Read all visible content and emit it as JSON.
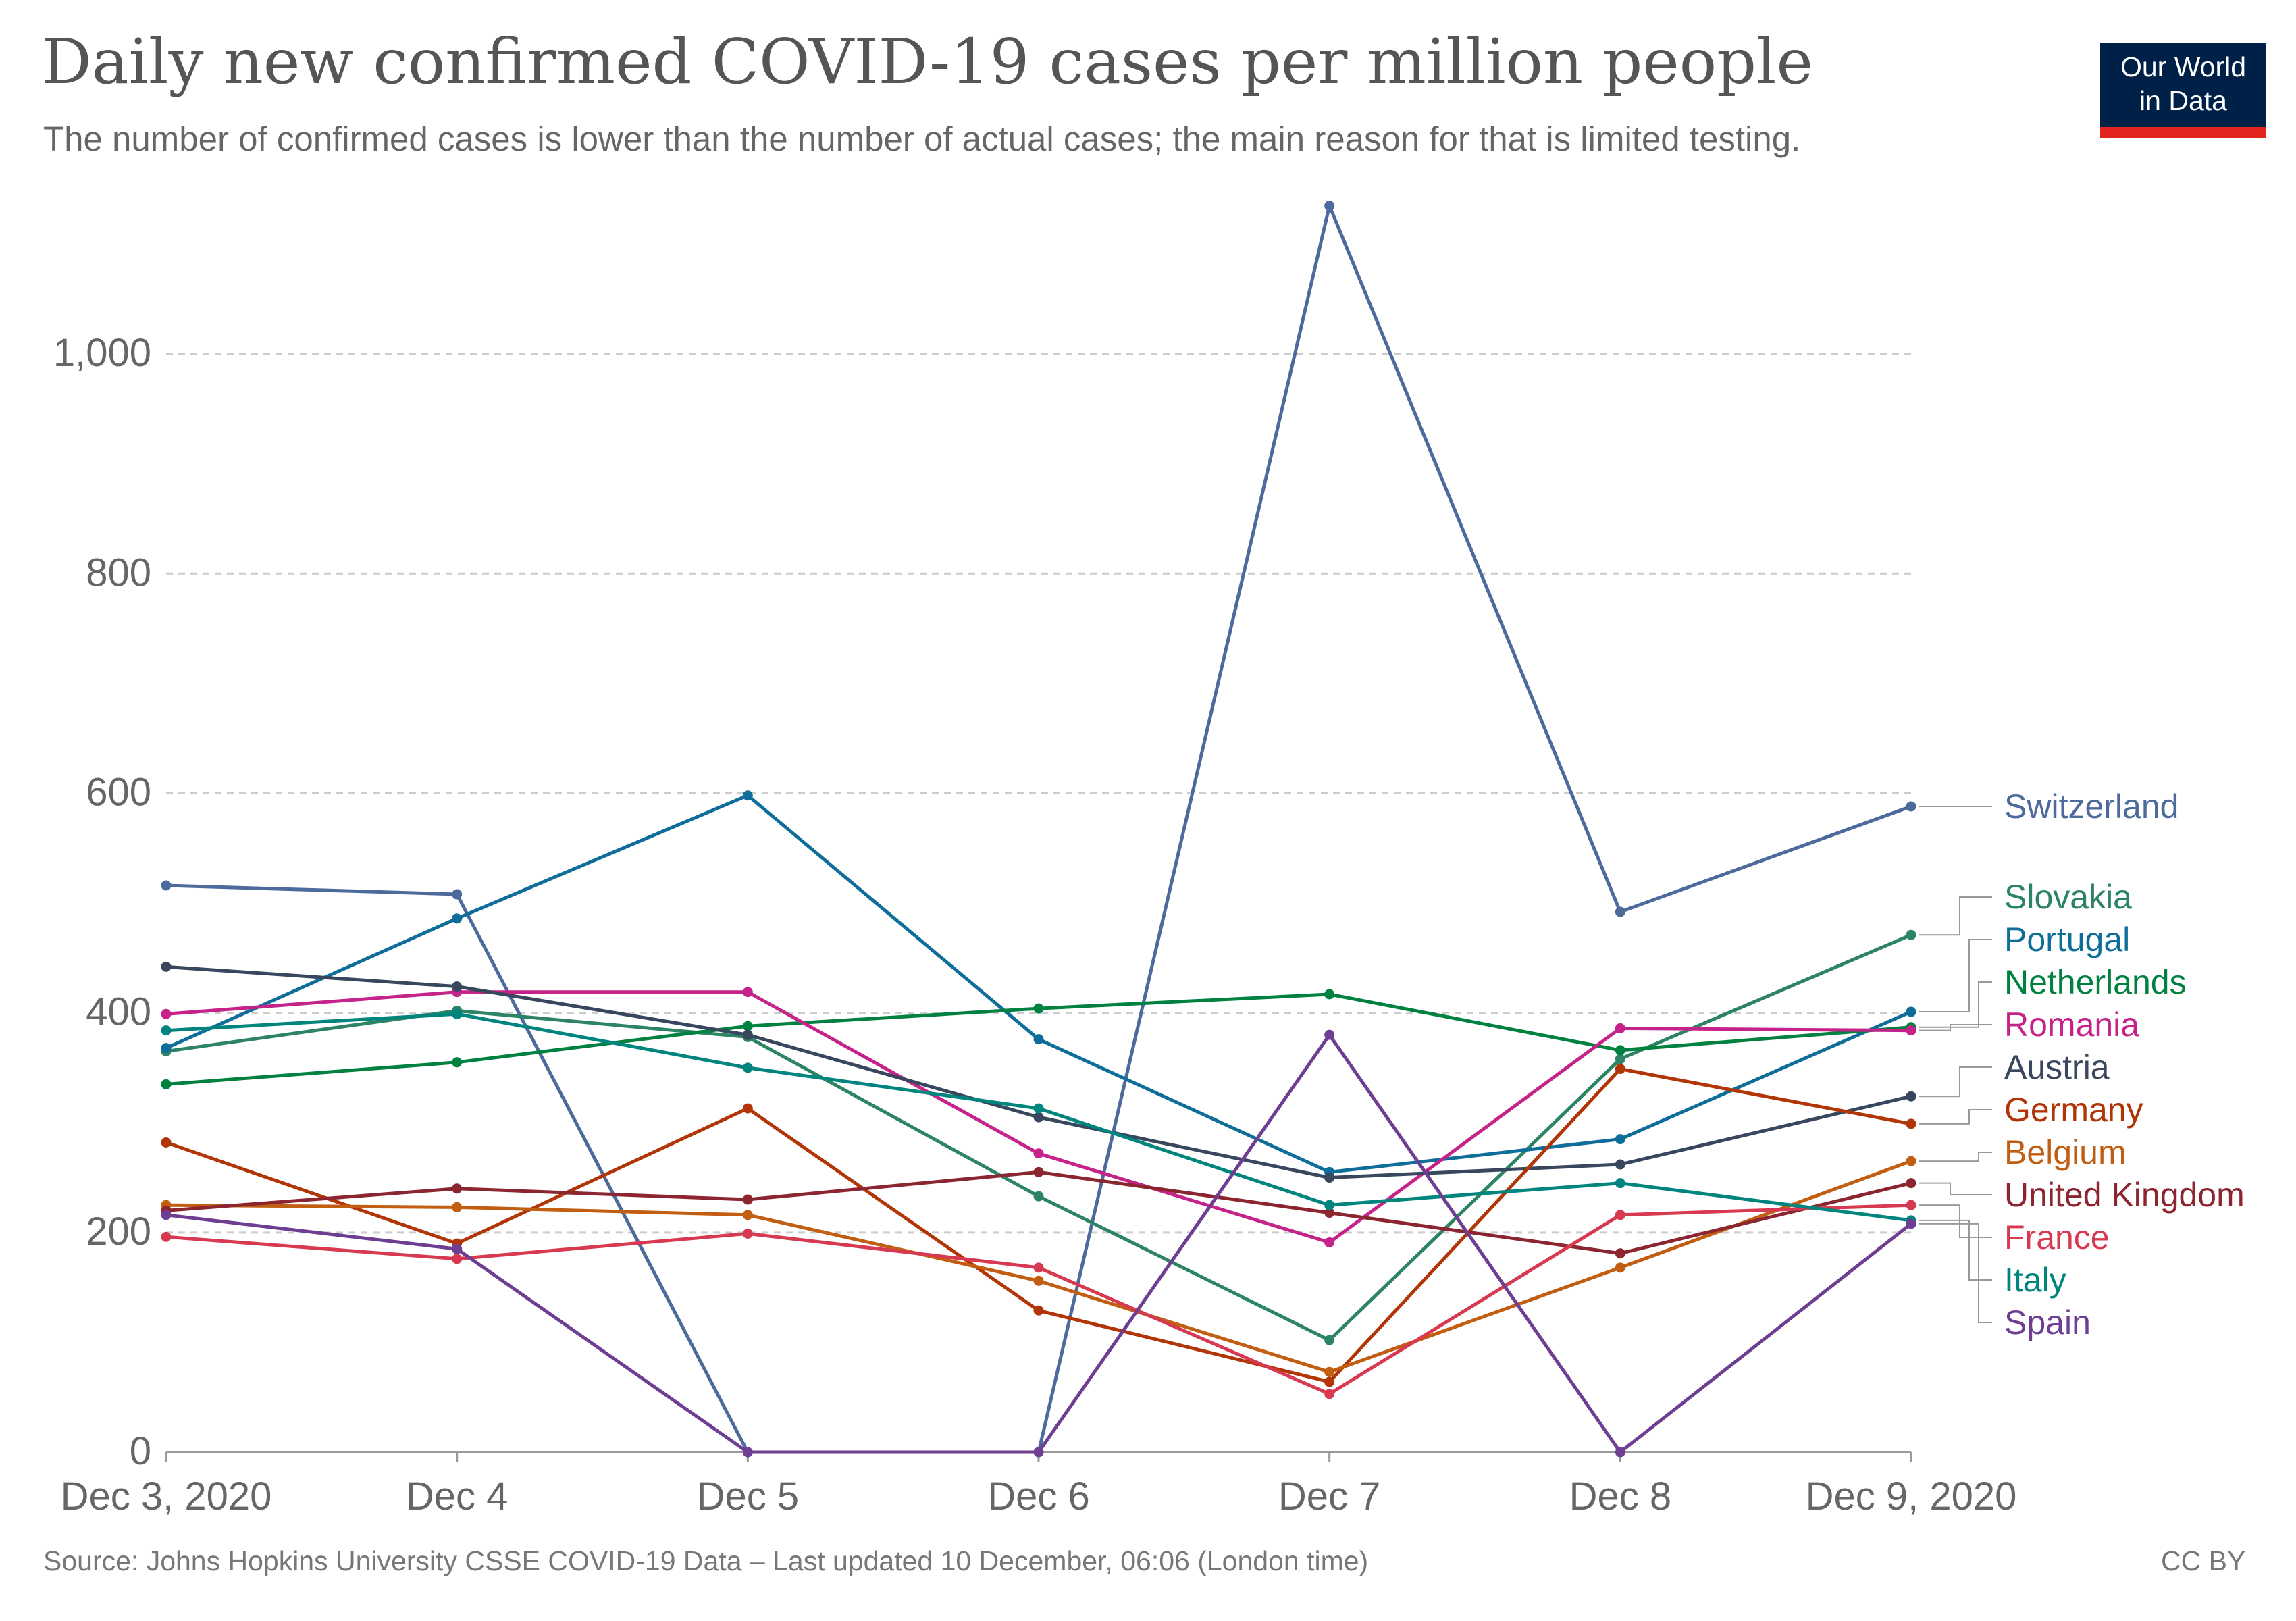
{
  "header": {
    "title": "Daily new confirmed COVID-19 cases per million people",
    "subtitle": "The number of confirmed cases is lower than the number of actual cases; the main reason for that is limited testing.",
    "logo_line1": "Our World",
    "logo_line2": "in Data"
  },
  "footer": {
    "source": "Source: Johns Hopkins University CSSE COVID-19 Data – Last updated 10 December, 06:06 (London time)",
    "license": "CC BY"
  },
  "chart_data": {
    "type": "line",
    "title": "Daily new confirmed COVID-19 cases per million people",
    "subtitle": "The number of confirmed cases is lower than the number of actual cases; the main reason for that is limited testing.",
    "x": [
      "Dec 3, 2020",
      "Dec 4",
      "Dec 5",
      "Dec 6",
      "Dec 7",
      "Dec 8",
      "Dec 9, 2020"
    ],
    "ylim": [
      0,
      1130
    ],
    "yticks": [
      0,
      200,
      400,
      600,
      800,
      1000
    ],
    "ytick_labels": [
      "0",
      "200",
      "400",
      "600",
      "800",
      "1,000"
    ],
    "grid": "horizontal dashed",
    "legend": "right, labels at line ends",
    "series": [
      {
        "name": "Switzerland",
        "color": "#4c6a9c",
        "values": [
          516,
          508,
          0,
          0,
          1135,
          492,
          588
        ]
      },
      {
        "name": "Slovakia",
        "color": "#2c8465",
        "values": [
          365,
          402,
          378,
          233,
          102,
          358,
          471
        ]
      },
      {
        "name": "Portugal",
        "color": "#0f6e99",
        "values": [
          368,
          486,
          598,
          376,
          255,
          285,
          401
        ]
      },
      {
        "name": "Netherlands",
        "color": "#00813f",
        "values": [
          335,
          355,
          388,
          404,
          417,
          366,
          387
        ]
      },
      {
        "name": "Romania",
        "color": "#c5238a",
        "values": [
          399,
          419,
          419,
          272,
          191,
          386,
          384
        ]
      },
      {
        "name": "Austria",
        "color": "#38475e",
        "values": [
          442,
          424,
          380,
          305,
          250,
          262,
          324
        ]
      },
      {
        "name": "Germany",
        "color": "#b13507",
        "values": [
          282,
          190,
          313,
          129,
          64,
          349,
          299
        ]
      },
      {
        "name": "Belgium",
        "color": "#c15e11",
        "values": [
          225,
          223,
          216,
          156,
          73,
          168,
          265
        ]
      },
      {
        "name": "United Kingdom",
        "color": "#8b2530",
        "values": [
          220,
          240,
          230,
          255,
          218,
          181,
          245
        ]
      },
      {
        "name": "France",
        "color": "#d73a50",
        "values": [
          196,
          176,
          199,
          168,
          53,
          216,
          225
        ]
      },
      {
        "name": "Italy",
        "color": "#00847e",
        "values": [
          384,
          399,
          350,
          313,
          225,
          245,
          211
        ]
      },
      {
        "name": "Spain",
        "color": "#6d3e91",
        "values": [
          216,
          185,
          0,
          0,
          380,
          0,
          208
        ]
      }
    ]
  }
}
